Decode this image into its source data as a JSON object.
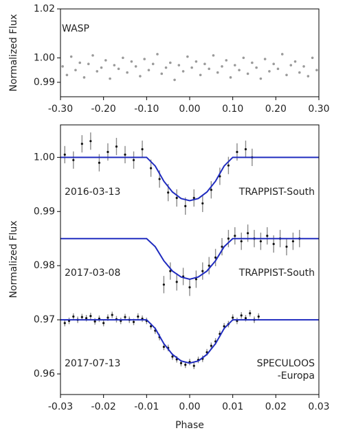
{
  "chart_data": [
    {
      "type": "scatter",
      "ylabel": "Normalized Flux",
      "annotation": "WASP",
      "color": "#9a9a9a",
      "xlim": [
        -0.3,
        0.3
      ],
      "ylim": [
        0.9841,
        1.02
      ],
      "xticks": [
        {
          "value": -0.3,
          "label": "-0.30"
        },
        {
          "value": -0.2,
          "label": "-0.20"
        },
        {
          "value": -0.1,
          "label": "-0.10"
        },
        {
          "value": 0,
          "label": "0.00"
        },
        {
          "value": 0.1,
          "label": "0.10"
        },
        {
          "value": 0.2,
          "label": "0.20"
        },
        {
          "value": 0.3,
          "label": "0.30"
        }
      ],
      "yticks": [
        1.02,
        {
          "value": 1.0,
          "label": "1.00"
        },
        0.99
      ],
      "x": [
        -0.295,
        -0.285,
        -0.275,
        -0.265,
        -0.255,
        -0.245,
        -0.235,
        -0.225,
        -0.215,
        -0.205,
        -0.195,
        -0.185,
        -0.175,
        -0.165,
        -0.155,
        -0.145,
        -0.135,
        -0.125,
        -0.115,
        -0.105,
        -0.095,
        -0.085,
        -0.075,
        -0.065,
        -0.055,
        -0.045,
        -0.035,
        -0.025,
        -0.015,
        -0.005,
        0.005,
        0.015,
        0.025,
        0.035,
        0.045,
        0.055,
        0.065,
        0.075,
        0.085,
        0.095,
        0.105,
        0.115,
        0.125,
        0.135,
        0.145,
        0.155,
        0.165,
        0.175,
        0.185,
        0.195,
        0.205,
        0.215,
        0.225,
        0.235,
        0.245,
        0.255,
        0.265,
        0.275,
        0.285,
        0.295
      ],
      "y": [
        0.9965,
        0.993,
        1.0005,
        0.995,
        0.998,
        0.992,
        0.9975,
        1.001,
        0.9945,
        0.996,
        0.999,
        0.9915,
        0.997,
        0.9955,
        1.0,
        0.994,
        0.9985,
        0.9965,
        0.9925,
        0.9995,
        0.995,
        0.9975,
        1.0015,
        0.9935,
        0.996,
        0.998,
        0.991,
        0.997,
        0.9945,
        1.0005,
        0.996,
        0.9985,
        0.993,
        0.9975,
        0.9955,
        1.001,
        0.994,
        0.9965,
        0.999,
        0.992,
        0.997,
        0.995,
        1.0,
        0.9935,
        0.998,
        0.996,
        0.9915,
        0.9995,
        0.9945,
        0.9975,
        0.9955,
        1.0015,
        0.993,
        0.997,
        0.9985,
        0.994,
        0.9965,
        0.9925,
        1.0,
        0.995
      ]
    },
    {
      "type": "errorbar",
      "xlabel": "Phase",
      "ylabel": "Normalized Flux",
      "model_color": "#1f2bbf",
      "point_color": "#111111",
      "error_color": "#8a8a8a",
      "xlim": [
        -0.03,
        0.03
      ],
      "ylim": [
        0.9562,
        1.006
      ],
      "xticks": [
        {
          "value": -0.03,
          "label": "-0.03"
        },
        {
          "value": -0.02,
          "label": "-0.02"
        },
        {
          "value": -0.01,
          "label": "-0.01"
        },
        {
          "value": 0,
          "label": "0.00"
        },
        {
          "value": 0.01,
          "label": "0.01"
        },
        {
          "value": 0.02,
          "label": "0.02"
        },
        {
          "value": 0.03,
          "label": "0.03"
        }
      ],
      "yticks": [
        {
          "value": 1.0,
          "label": "1.00"
        },
        0.99,
        0.98,
        0.97,
        0.96
      ],
      "model_x": [
        -0.03,
        -0.01,
        -0.008,
        -0.006,
        -0.004,
        -0.002,
        0,
        0.002,
        0.004,
        0.006,
        0.008,
        0.01,
        0.03
      ],
      "series": [
        {
          "date": "2016-03-13",
          "instrument": [
            "TRAPPIST-South"
          ],
          "error": 0.0016,
          "x": [
            -0.029,
            -0.027,
            -0.025,
            -0.023,
            -0.021,
            -0.019,
            -0.017,
            -0.015,
            -0.013,
            -0.011,
            -0.009,
            -0.007,
            -0.005,
            -0.003,
            -0.001,
            0.001,
            0.003,
            0.005,
            0.007,
            0.009,
            0.011,
            0.013,
            0.0145
          ],
          "y": [
            1.0005,
            0.9995,
            1.0025,
            1.003,
            0.999,
            1.001,
            1.002,
            1.0005,
            0.9995,
            1.0015,
            0.998,
            0.996,
            0.9935,
            0.9925,
            0.991,
            0.9925,
            0.9915,
            0.994,
            0.9965,
            0.9985,
            1.001,
            1.0015,
            1.0
          ],
          "model_y": [
            1.0,
            1.0,
            0.9984,
            0.9956,
            0.9936,
            0.9924,
            0.992,
            0.9924,
            0.9936,
            0.9956,
            0.9984,
            1.0,
            1.0
          ]
        },
        {
          "date": "2017-03-08",
          "instrument": [
            "TRAPPIST-South"
          ],
          "error": 0.0016,
          "x": [
            -0.006,
            -0.0045,
            -0.003,
            -0.0015,
            0,
            0.0015,
            0.003,
            0.0045,
            0.006,
            0.0075,
            0.009,
            0.0105,
            0.012,
            0.0135,
            0.015,
            0.0165,
            0.018,
            0.0195,
            0.021,
            0.0225,
            0.024,
            0.0255
          ],
          "y": [
            0.9765,
            0.979,
            0.977,
            0.978,
            0.976,
            0.9775,
            0.979,
            0.98,
            0.9815,
            0.9835,
            0.985,
            0.9855,
            0.9845,
            0.986,
            0.985,
            0.9845,
            0.9855,
            0.984,
            0.985,
            0.9835,
            0.9845,
            0.985
          ],
          "model_y": [
            0.985,
            0.985,
            0.9835,
            0.9809,
            0.979,
            0.9779,
            0.9775,
            0.9779,
            0.979,
            0.9809,
            0.9835,
            0.985,
            0.985
          ]
        },
        {
          "date": "2017-07-13",
          "instrument": [
            "SPECULOOS",
            "-Europa"
          ],
          "error": 0.0006,
          "x": [
            -0.029,
            -0.028,
            -0.027,
            -0.026,
            -0.025,
            -0.024,
            -0.023,
            -0.022,
            -0.021,
            -0.02,
            -0.019,
            -0.018,
            -0.017,
            -0.016,
            -0.015,
            -0.014,
            -0.013,
            -0.012,
            -0.011,
            -0.01,
            -0.009,
            -0.008,
            -0.007,
            -0.006,
            -0.005,
            -0.004,
            -0.003,
            -0.002,
            -0.001,
            0,
            0.001,
            0.002,
            0.003,
            0.004,
            0.005,
            0.006,
            0.007,
            0.008,
            0.009,
            0.01,
            0.011,
            0.012,
            0.013,
            0.014,
            0.015,
            0.016
          ],
          "y": [
            0.9694,
            0.9698,
            0.9706,
            0.97,
            0.9705,
            0.9703,
            0.9707,
            0.9697,
            0.9702,
            0.9694,
            0.9704,
            0.9709,
            0.9701,
            0.9698,
            0.9705,
            0.97,
            0.9696,
            0.9706,
            0.9702,
            0.9698,
            0.9688,
            0.968,
            0.9668,
            0.965,
            0.9648,
            0.9632,
            0.9627,
            0.962,
            0.9617,
            0.9622,
            0.9615,
            0.9626,
            0.9628,
            0.964,
            0.9652,
            0.966,
            0.9674,
            0.9688,
            0.9692,
            0.9704,
            0.9698,
            0.9708,
            0.9703,
            0.9712,
            0.97,
            0.9706
          ],
          "model_y": [
            0.97,
            0.97,
            0.9684,
            0.9656,
            0.9636,
            0.9624,
            0.962,
            0.9624,
            0.9636,
            0.9656,
            0.9684,
            0.97,
            0.97
          ]
        }
      ]
    }
  ]
}
